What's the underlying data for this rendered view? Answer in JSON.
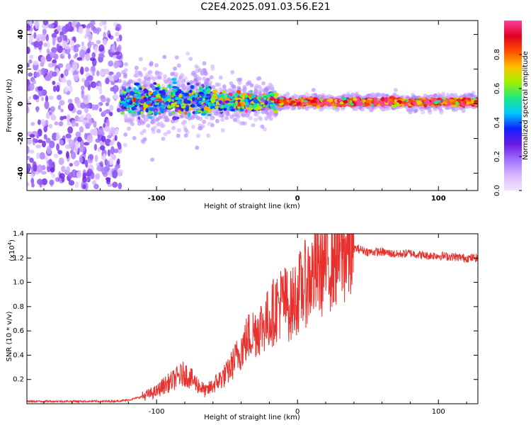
{
  "chart_data": [
    {
      "type": "heatmap",
      "title": "C2E4.2025.091.03.56.E21",
      "xlabel": "Height of straight line (km)",
      "ylabel": "Frequency (Hz)",
      "xlim": [
        -192,
        128
      ],
      "ylim": [
        -50,
        48
      ],
      "x_ticks": [
        -100,
        0,
        100
      ],
      "y_ticks": [
        -40,
        -20,
        0,
        20,
        40
      ],
      "colorbar": {
        "label": "Normalized spectral amplitude",
        "range": [
          0,
          1
        ],
        "ticks": [
          "0.0",
          "0.2",
          "0.4",
          "0.6",
          "0.8"
        ],
        "colors": [
          "#f0e6ff",
          "#d8b8ff",
          "#a070ff",
          "#6a1be0",
          "#1020ff",
          "#00c8ff",
          "#20e880",
          "#a0f000",
          "#ffc000",
          "#ff5000",
          "#e00020",
          "#ff40a0"
        ]
      },
      "segments": [
        {
          "x_start": -192,
          "x_end": -125,
          "freq_spread_hz": 48,
          "amplitude": 0.15
        },
        {
          "x_start": -125,
          "x_end": -60,
          "freq_center_hz": 2,
          "freq_spread_hz": 7,
          "amplitude": 0.45
        },
        {
          "x_start": -60,
          "x_end": -15,
          "freq_center_hz": 1,
          "freq_spread_hz": 4,
          "amplitude": 0.55
        },
        {
          "x_start": -15,
          "x_end": 128,
          "freq_center_hz": 1,
          "freq_spread_hz": 1.5,
          "amplitude": 0.85
        }
      ]
    },
    {
      "type": "line",
      "xlabel": "Height of straight line (km)",
      "ylabel": "SNR (10 * v/v)",
      "y_multiplier": "(x10",
      "y_multiplier_exp": "4",
      "y_multiplier_close": ")",
      "xlim": [
        -192,
        128
      ],
      "ylim": [
        0,
        1.4
      ],
      "x_ticks": [
        -100,
        0,
        100
      ],
      "y_ticks": [
        0.2,
        0.4,
        0.6,
        0.8,
        1.0,
        1.2,
        1.4
      ],
      "line_color": "#e8302c",
      "series": [
        {
          "x": [
            -192,
            -170,
            -150,
            -130,
            -120,
            -110,
            -100,
            -95,
            -90,
            -85,
            -80,
            -75,
            -70,
            -65,
            -60,
            -55,
            -50,
            -45,
            -40,
            -35,
            -30,
            -25,
            -20,
            -15,
            -10,
            -5,
            0,
            5,
            10,
            15,
            20,
            25,
            30,
            35,
            40,
            45,
            50,
            60,
            70,
            80,
            90,
            100,
            110,
            120,
            128
          ],
          "values": [
            0.02,
            0.02,
            0.02,
            0.02,
            0.03,
            0.06,
            0.1,
            0.15,
            0.18,
            0.22,
            0.25,
            0.2,
            0.15,
            0.1,
            0.15,
            0.2,
            0.25,
            0.35,
            0.45,
            0.55,
            0.6,
            0.65,
            0.7,
            0.8,
            0.85,
            0.8,
            0.9,
            0.98,
            1.05,
            1.1,
            1.15,
            1.2,
            1.25,
            1.25,
            1.28,
            1.27,
            1.25,
            1.25,
            1.23,
            1.24,
            1.22,
            1.22,
            1.21,
            1.2,
            1.2
          ]
        }
      ]
    }
  ]
}
